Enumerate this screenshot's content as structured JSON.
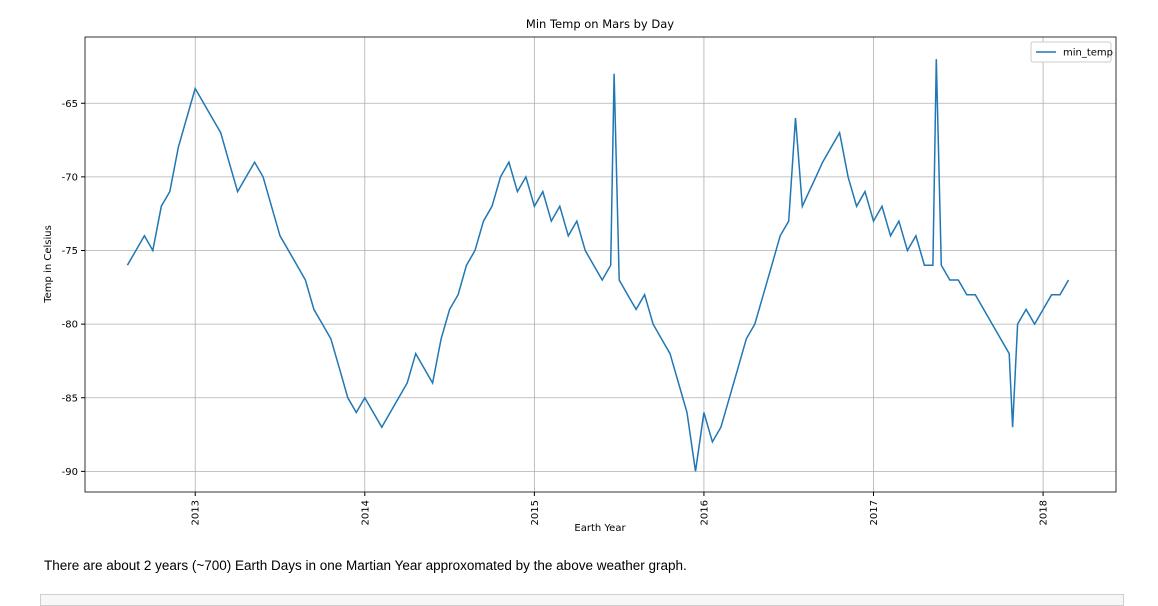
{
  "chart_data": {
    "type": "line",
    "title": "Min Temp on Mars by Day",
    "xlabel": "Earth Year",
    "ylabel": "Temp in Celsius",
    "x": [
      2012.6,
      2012.65,
      2012.7,
      2012.75,
      2012.8,
      2012.85,
      2012.9,
      2012.95,
      2013.0,
      2013.05,
      2013.1,
      2013.15,
      2013.2,
      2013.25,
      2013.3,
      2013.35,
      2013.4,
      2013.45,
      2013.5,
      2013.55,
      2013.6,
      2013.65,
      2013.7,
      2013.75,
      2013.8,
      2013.85,
      2013.9,
      2013.95,
      2014.0,
      2014.05,
      2014.1,
      2014.15,
      2014.2,
      2014.25,
      2014.3,
      2014.35,
      2014.4,
      2014.45,
      2014.5,
      2014.55,
      2014.6,
      2014.65,
      2014.7,
      2014.75,
      2014.8,
      2014.85,
      2014.9,
      2014.95,
      2015.0,
      2015.05,
      2015.1,
      2015.15,
      2015.2,
      2015.25,
      2015.3,
      2015.35,
      2015.4,
      2015.45,
      2015.47,
      2015.5,
      2015.55,
      2015.6,
      2015.65,
      2015.7,
      2015.75,
      2015.8,
      2015.85,
      2015.9,
      2015.95,
      2016.0,
      2016.05,
      2016.1,
      2016.15,
      2016.2,
      2016.25,
      2016.3,
      2016.35,
      2016.4,
      2016.45,
      2016.5,
      2016.54,
      2016.58,
      2016.62,
      2016.66,
      2016.7,
      2016.75,
      2016.8,
      2016.85,
      2016.9,
      2016.95,
      2017.0,
      2017.05,
      2017.1,
      2017.15,
      2017.2,
      2017.25,
      2017.3,
      2017.35,
      2017.37,
      2017.4,
      2017.45,
      2017.5,
      2017.55,
      2017.6,
      2017.65,
      2017.7,
      2017.75,
      2017.8,
      2017.82,
      2017.85,
      2017.9,
      2017.95,
      2018.0,
      2018.05,
      2018.1,
      2018.15
    ],
    "series": [
      {
        "name": "min_temp",
        "color": "#1f77b4",
        "values": [
          -76,
          -75,
          -74,
          -75,
          -72,
          -71,
          -68,
          -66,
          -64,
          -65,
          -66,
          -67,
          -69,
          -71,
          -70,
          -69,
          -70,
          -72,
          -74,
          -75,
          -76,
          -77,
          -79,
          -80,
          -81,
          -83,
          -85,
          -86,
          -85,
          -86,
          -87,
          -86,
          -85,
          -84,
          -82,
          -83,
          -84,
          -81,
          -79,
          -78,
          -76,
          -75,
          -73,
          -72,
          -70,
          -69,
          -71,
          -70,
          -72,
          -71,
          -73,
          -72,
          -74,
          -73,
          -75,
          -76,
          -77,
          -76,
          -63,
          -77,
          -78,
          -79,
          -78,
          -80,
          -81,
          -82,
          -84,
          -86,
          -90,
          -86,
          -88,
          -87,
          -85,
          -83,
          -81,
          -80,
          -78,
          -76,
          -74,
          -73,
          -66,
          -72,
          -71,
          -70,
          -69,
          -68,
          -67,
          -70,
          -72,
          -71,
          -73,
          -72,
          -74,
          -73,
          -75,
          -74,
          -76,
          -76,
          -62,
          -76,
          -77,
          -77,
          -78,
          -78,
          -79,
          -80,
          -81,
          -82,
          -87,
          -80,
          -79,
          -80,
          -79,
          -78,
          -78,
          -77
        ]
      }
    ],
    "xlim": [
      2012.35,
      2018.43
    ],
    "xticks": [
      2013,
      2014,
      2015,
      2016,
      2017,
      2018
    ],
    "ylim": [
      -91.4,
      -60.5
    ],
    "yticks": [
      -65,
      -70,
      -75,
      -80,
      -85,
      -90
    ],
    "grid": true,
    "legend": "upper right"
  },
  "note": "There are about 2 years (~700) Earth Days in one Martian Year approxomated by the above weather graph."
}
